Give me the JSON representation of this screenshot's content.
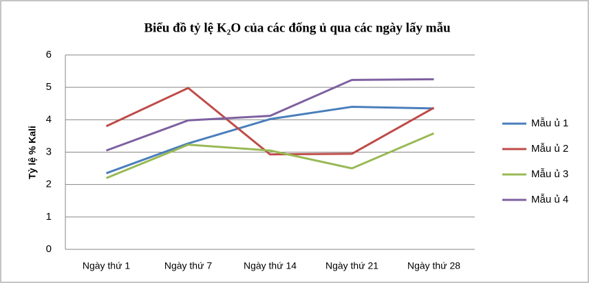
{
  "chart_data": {
    "type": "line",
    "title": "Biểu đồ tỷ lệ K₂O của các đống ủ qua các ngày lấy mẫu",
    "y_label": "Tỷ lệ % Kali",
    "categories": [
      "Ngày thứ 1",
      "Ngày thứ 7",
      "Ngày thứ 14",
      "Ngày thứ 21",
      "Ngày thứ 28"
    ],
    "series": [
      {
        "name": "Mẫu ủ 1",
        "color": "#4a7ebb",
        "values": [
          2.35,
          3.27,
          4.02,
          4.4,
          4.35
        ]
      },
      {
        "name": "Mẫu ủ 2",
        "color": "#be4b48",
        "values": [
          3.8,
          4.98,
          2.93,
          2.95,
          4.37
        ]
      },
      {
        "name": "Mẫu ủ 3",
        "color": "#98b954",
        "values": [
          2.2,
          3.23,
          3.05,
          2.5,
          3.58
        ]
      },
      {
        "name": "Mẫu ủ 4",
        "color": "#7d60a0",
        "values": [
          3.05,
          3.98,
          4.12,
          5.23,
          5.25
        ]
      }
    ],
    "ylim": [
      0,
      6
    ],
    "yticks": [
      0,
      1,
      2,
      3,
      4,
      5,
      6
    ],
    "grid": true,
    "legend": "right"
  }
}
